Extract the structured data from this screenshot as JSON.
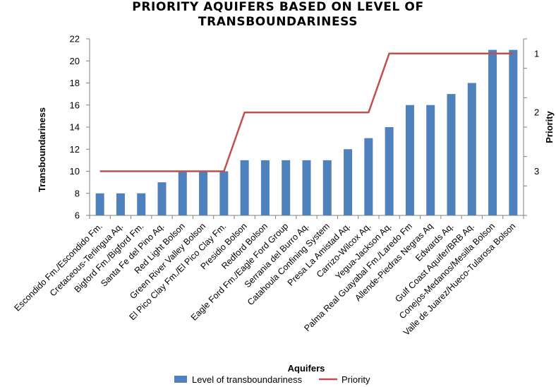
{
  "chart_data": {
    "type": "bar",
    "title_lines": [
      "PRIORITY AQUIFERS BASED ON LEVEL OF",
      "TRANSBOUNDARINESS"
    ],
    "xlabel": "Aquifers",
    "ylabel": "Transboundariness",
    "y2label": "Priority",
    "ylim": [
      6,
      22
    ],
    "yticks": [
      "6",
      "8",
      "10",
      "12",
      "14",
      "16",
      "18",
      "20",
      "22"
    ],
    "y2lim": [
      3.75,
      0.75
    ],
    "y2ticks": [
      "1",
      "2",
      "3"
    ],
    "colors": {
      "bar": "#4f81bd",
      "line": "#c0504d",
      "axis": "#808080"
    },
    "categories": [
      "Escondido Fm./Escondido Fm.",
      "Cretaceous-Terlingua Aq.",
      "Bigford Fm./Bigford Fm.",
      "Santa Fe del Pino Aq.",
      "Red Light Bolson",
      "Green River Valley Bolson",
      "El Pico Clay Fm./El Pico Clay Fm.",
      "Presidio Bolson",
      "Redford Bolson",
      "Eagle Ford Fm./Eagle Ford Group",
      "Serrania del Burro Aq.",
      "Catahoula Confining System",
      "Presa La Amistad Aq.",
      "Carrizo-Wilcox Aq.",
      "Yegua-Jackson Aq.",
      "Palma Real Guayabal Fm./Laredo Fm",
      "Allende-Piedras Negras Aq",
      "Edwards Aq.",
      "Gulf Coast Aquifer/BRB Aq.",
      "Conejos-Medanos/Mesilla Bolson",
      "Valle de Juarez/Hueco-Tularosa Bolson"
    ],
    "series": [
      {
        "name": "Level of transboundariness",
        "kind": "bar",
        "axis": "left",
        "values": [
          8,
          8,
          8,
          9,
          10,
          10,
          10,
          11,
          11,
          11,
          11,
          11,
          12,
          13,
          14,
          16,
          16,
          17,
          18,
          21,
          21
        ]
      },
      {
        "name": "Priority",
        "kind": "line",
        "axis": "right",
        "values": [
          3,
          3,
          3,
          3,
          3,
          3,
          3,
          2,
          2,
          2,
          2,
          2,
          2,
          2,
          1,
          1,
          1,
          1,
          1,
          1,
          1
        ]
      }
    ],
    "legend": [
      "Level of transboundariness",
      "Priority"
    ],
    "legend_position": "bottom"
  }
}
